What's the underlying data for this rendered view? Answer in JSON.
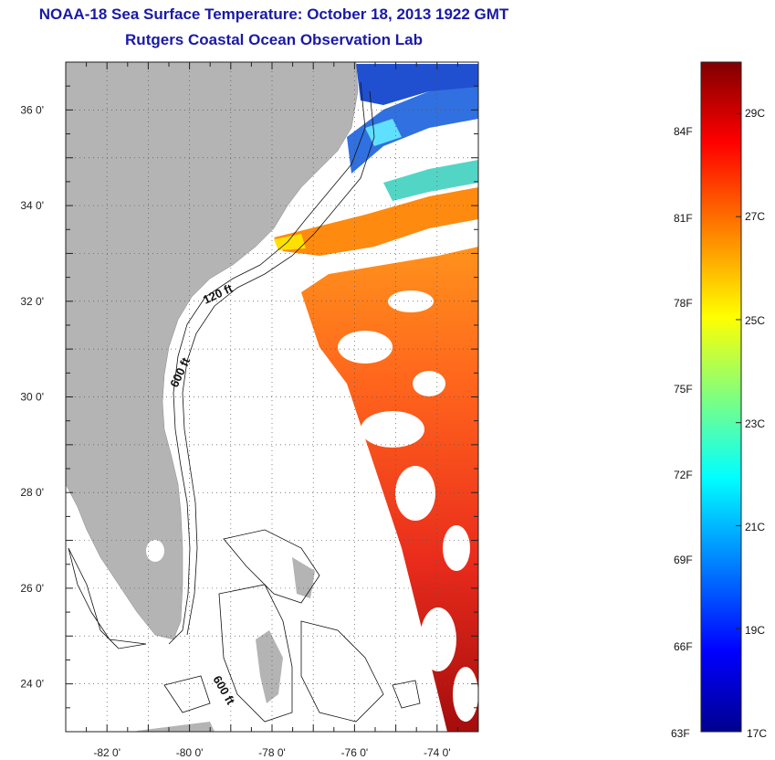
{
  "title": "NOAA-18 Sea Surface Temperature:  October 18, 2013 1922 GMT",
  "subtitle": "Rutgers Coastal Ocean Observation Lab",
  "map": {
    "lon_range": [
      -83,
      -73
    ],
    "lat_range": [
      23,
      37
    ],
    "lon_ticks": [
      {
        "value": -82,
        "label": "-82 0'"
      },
      {
        "value": -80,
        "label": "-80 0'"
      },
      {
        "value": -78,
        "label": "-78 0'"
      },
      {
        "value": -76,
        "label": "-76 0'"
      },
      {
        "value": -74,
        "label": "-74 0'"
      }
    ],
    "lat_ticks": [
      {
        "value": 36,
        "label": "36 0'"
      },
      {
        "value": 34,
        "label": "34 0'"
      },
      {
        "value": 32,
        "label": "32 0'"
      },
      {
        "value": 30,
        "label": "30 0'"
      },
      {
        "value": 28,
        "label": "28 0'"
      },
      {
        "value": 26,
        "label": "26 0'"
      },
      {
        "value": 24,
        "label": "24 0'"
      }
    ],
    "contour_labels": [
      "120 ft",
      "600 ft",
      "600 ft"
    ],
    "land_color": "#b4b4b4",
    "ocean_color": "#ffffff"
  },
  "colorbar": {
    "min_c": 17,
    "max_c": 30,
    "fahrenheit_labels": [
      "84F",
      "81F",
      "78F",
      "75F",
      "72F",
      "69F",
      "66F",
      "63F"
    ],
    "celsius_labels": [
      "29C",
      "27C",
      "25C",
      "23C",
      "21C",
      "19C",
      "17C"
    ],
    "colors": [
      "#00008f",
      "#0000ff",
      "#00ffff",
      "#ffff00",
      "#ff7f00",
      "#ff0000",
      "#800000"
    ]
  }
}
